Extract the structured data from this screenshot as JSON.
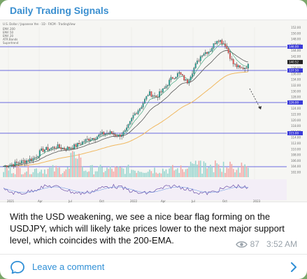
{
  "post": {
    "channel_name": "Daily Trading Signals",
    "text": "With the USD weakening, we see a nice bear flag forming on the USDJPY, which will likely take prices lower to the next major support level, which coincides with the 200-EMA.",
    "views": "87",
    "time": "3:52 AM"
  },
  "comments": {
    "label": "Leave a comment"
  },
  "chart": {
    "header_title": "U.S. Dollar / Japanese Yen · 1D · FXCM · TradingView",
    "legend": [
      "EMA 200",
      "EMA 50",
      "EMA 20",
      "ATR Bands",
      "Supertrend"
    ],
    "x_ticks": [
      "2021",
      "Apr",
      "Jul",
      "Oct",
      "2022",
      "Apr",
      "Jul",
      "Oct",
      "2023"
    ],
    "y_ticks": [
      "152.00",
      "150.00",
      "148.00",
      "146.00",
      "144.00",
      "142.00",
      "140.00",
      "138.00",
      "136.00",
      "134.00",
      "132.00",
      "130.00",
      "128.00",
      "126.00",
      "124.00",
      "122.00",
      "120.00",
      "118.00",
      "116.00",
      "114.00",
      "112.00",
      "110.00",
      "108.00",
      "106.00",
      "104.00",
      "102.00"
    ],
    "price_tags": [
      "146.00",
      "140.52",
      "137.50",
      "126.00",
      "115.00"
    ],
    "colors": {
      "up": "#26a69a",
      "down": "#ef5350",
      "ema200": "#f0b860",
      "ema50": "#444444",
      "support": "#3a3ad8"
    }
  },
  "chart_data": {
    "type": "line",
    "title": "",
    "series": [
      {
        "name": "USDJPY",
        "values": [
          103.2,
          103.8,
          104.5,
          105.2,
          106.0,
          108.9,
          109.5,
          110.2,
          109.4,
          110.0,
          111.3,
          112.8,
          113.6,
          114.8,
          115.1,
          114.0,
          115.6,
          121.4,
          124.6,
          129.4,
          128.0,
          130.9,
          134.8,
          136.5,
          133.2,
          138.8,
          143.6,
          144.6,
          148.9,
          146.8,
          140.0,
          138.0,
          139.2
        ]
      }
    ],
    "ylim": [
      102,
      152
    ]
  }
}
